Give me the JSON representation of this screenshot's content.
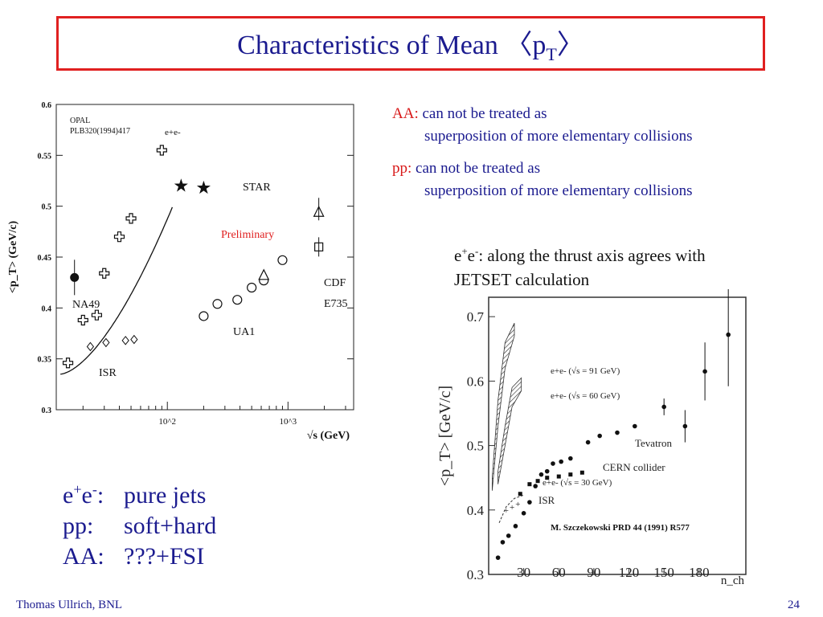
{
  "slide": {
    "title_main": "Characteristics of Mean 〈p",
    "title_sub": "T",
    "title_end": "〉",
    "footer_author": "Thomas Ullrich, BNL",
    "page_number": "24"
  },
  "notes": {
    "aa_key": "AA:",
    "aa_line1": "can not be treated as",
    "aa_line2": "superposition of more elementary collisions",
    "pp_key": "pp:",
    "pp_line1": "can not be treated as",
    "pp_line2": "superposition of more elementary collisions",
    "ee_prefix": "e",
    "ee_plus": "+",
    "ee_e": "e",
    "ee_minus": "-",
    "ee_line1": ": along the thrust axis agrees with",
    "ee_line2": "JETSET calculation"
  },
  "summary": [
    {
      "key_base": "e",
      "key_sup1": "+",
      "key_mid": "e",
      "key_sup2": "-",
      "key_end": ":",
      "value": "pure jets"
    },
    {
      "key": "pp:",
      "value": "soft+hard"
    },
    {
      "key": "AA:",
      "value": "???+FSI"
    }
  ],
  "chart_data": [
    {
      "type": "scatter",
      "ylabel": "<p_T> (GeV/c)",
      "xlabel": "√s (GeV)",
      "xscale": "log",
      "ylim": [
        0.3,
        0.6
      ],
      "y_ticks": [
        "0.3",
        "0.35",
        "0.4",
        "0.45",
        "0.5",
        "0.55",
        "0.6"
      ],
      "x_ticks": [
        "10^2",
        "10^3"
      ],
      "annotations": [
        "OPAL",
        "PLB320(1994)417",
        "e+e-",
        "STAR",
        "Preliminary",
        "NA49",
        "CDF",
        "E735",
        "UA1",
        "ISR"
      ],
      "colors": {
        "star_curve": "#1f2fd8",
        "preliminary": "#e02020"
      },
      "series": [
        {
          "name": "e+e-",
          "marker": "cross",
          "points": [
            [
              15,
              0.346
            ],
            [
              20,
              0.388
            ],
            [
              26,
              0.393
            ],
            [
              30,
              0.434
            ],
            [
              40,
              0.47
            ],
            [
              50,
              0.488
            ],
            [
              90,
              0.555
            ]
          ]
        },
        {
          "name": "ISR",
          "marker": "diamond",
          "points": [
            [
              23,
              0.362
            ],
            [
              31,
              0.366
            ],
            [
              45,
              0.368
            ],
            [
              53,
              0.369
            ]
          ]
        },
        {
          "name": "UA1",
          "marker": "circle",
          "points": [
            [
              200,
              0.392
            ],
            [
              260,
              0.404
            ],
            [
              380,
              0.408
            ],
            [
              500,
              0.42
            ],
            [
              630,
              0.427
            ],
            [
              900,
              0.447
            ]
          ]
        },
        {
          "name": "E735",
          "marker": "triangle",
          "points": [
            [
              630,
              0.432
            ],
            [
              1800,
              0.494
            ]
          ]
        },
        {
          "name": "CDF",
          "marker": "square",
          "points": [
            [
              1800,
              0.46
            ]
          ]
        },
        {
          "name": "STAR",
          "marker": "star",
          "points": [
            [
              130,
              0.52
            ],
            [
              200,
              0.518
            ]
          ]
        },
        {
          "name": "NA49",
          "marker": "filled-circle",
          "points": [
            [
              17,
              0.43
            ]
          ]
        }
      ]
    },
    {
      "type": "scatter",
      "ylabel": "<p_T> [GeV/c]",
      "xlabel": "n_ch",
      "ylim": [
        0.3,
        0.7
      ],
      "xlim": [
        0,
        220
      ],
      "y_ticks": [
        "0.3",
        "0.4",
        "0.5",
        "0.6",
        "0.7"
      ],
      "x_ticks": [
        "30",
        "60",
        "90",
        "120",
        "150",
        "180"
      ],
      "annotations": [
        "e+e- (√s = 91 GeV)",
        "e+e- (√s = 60 GeV)",
        "e+e- (√s = 30 GeV)",
        "Tevatron",
        "CERN collider",
        "ISR"
      ],
      "credit": "M. Szczekowski PRD 44 (1991) R577",
      "series": [
        {
          "name": "Tevatron",
          "points": [
            [
              8,
              0.326
            ],
            [
              12,
              0.35
            ],
            [
              17,
              0.36
            ],
            [
              23,
              0.375
            ],
            [
              30,
              0.395
            ],
            [
              35,
              0.412
            ],
            [
              40,
              0.437
            ],
            [
              45,
              0.455
            ],
            [
              50,
              0.46
            ],
            [
              55,
              0.472
            ],
            [
              62,
              0.475
            ],
            [
              70,
              0.48
            ],
            [
              85,
              0.505
            ],
            [
              95,
              0.515
            ],
            [
              110,
              0.52
            ],
            [
              125,
              0.53
            ],
            [
              150,
              0.56
            ],
            [
              168,
              0.53
            ],
            [
              185,
              0.615
            ],
            [
              205,
              0.672
            ]
          ]
        },
        {
          "name": "CERN collider",
          "points": [
            [
              27,
              0.425
            ],
            [
              35,
              0.44
            ],
            [
              42,
              0.445
            ],
            [
              50,
              0.45
            ],
            [
              60,
              0.452
            ],
            [
              70,
              0.455
            ],
            [
              80,
              0.458
            ]
          ]
        },
        {
          "name": "ISR",
          "points": [
            [
              15,
              0.4
            ],
            [
              20,
              0.405
            ],
            [
              25,
              0.41
            ]
          ]
        }
      ]
    }
  ]
}
